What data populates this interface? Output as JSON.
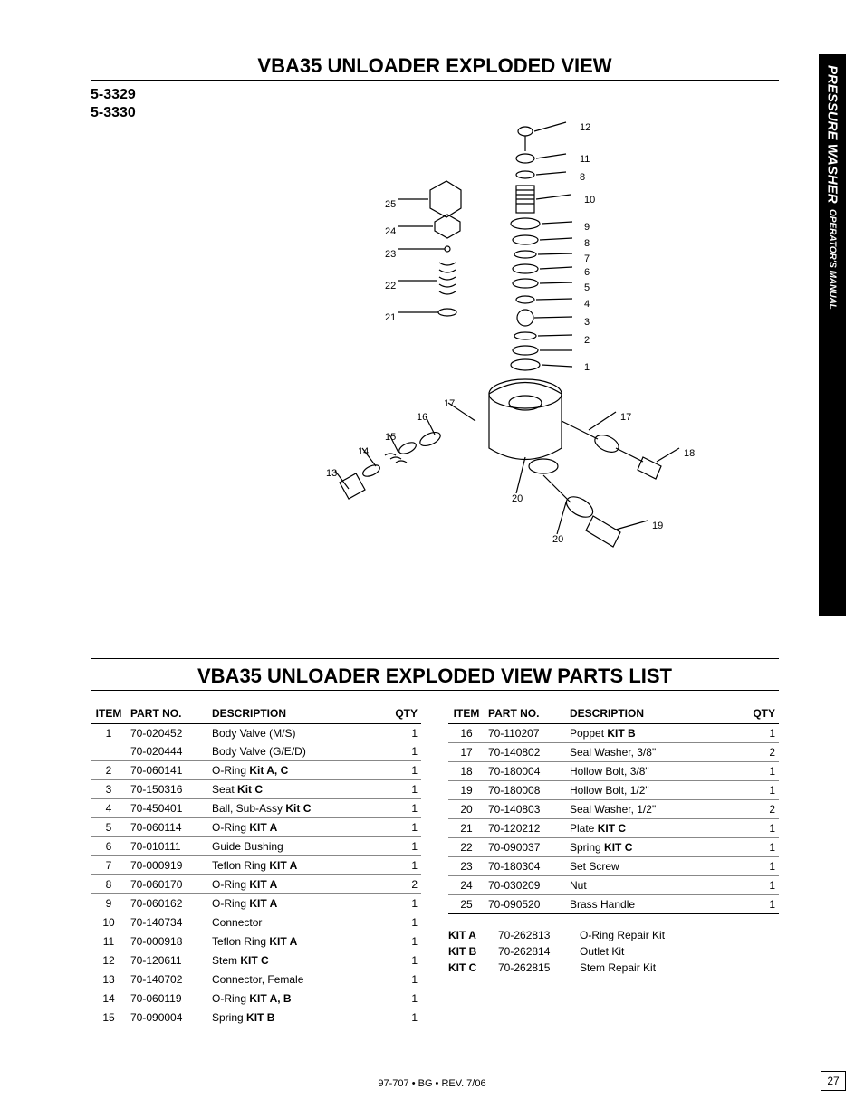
{
  "side_tab": {
    "main": "PRESSURE WASHER",
    "sub": "OPERATOR'S MANUAL"
  },
  "title1": "VBA35 UNLOADER EXPLODED VIEW",
  "title2": "VBA35 UNLOADER EXPLODED VIEW PARTS LIST",
  "models": [
    "5-3329",
    "5-3330"
  ],
  "headers": {
    "item": "ITEM",
    "part": "PART NO.",
    "desc": "DESCRIPTION",
    "qty": "QTY"
  },
  "left_rows": [
    {
      "item": "1",
      "part": "70-020452",
      "desc": "Body Valve (M/S)",
      "qty": "1",
      "nobottom": true
    },
    {
      "item": "",
      "part": "70-020444",
      "desc": "Body Valve (G/E/D)",
      "qty": "1"
    },
    {
      "item": "2",
      "part": "70-060141",
      "desc": "O-Ring <b>Kit A, C</b>",
      "qty": "1"
    },
    {
      "item": "3",
      "part": "70-150316",
      "desc": "Seat <b>Kit C</b>",
      "qty": "1"
    },
    {
      "item": "4",
      "part": "70-450401",
      "desc": "Ball, Sub-Assy <b>Kit C</b>",
      "qty": "1"
    },
    {
      "item": "5",
      "part": "70-060114",
      "desc": "O-Ring <b>KIT A</b>",
      "qty": "1"
    },
    {
      "item": "6",
      "part": "70-010111",
      "desc": "Guide Bushing",
      "qty": "1"
    },
    {
      "item": "7",
      "part": "70-000919",
      "desc": "Teflon Ring <b>KIT A</b>",
      "qty": "1"
    },
    {
      "item": "8",
      "part": "70-060170",
      "desc": "O-Ring <b>KIT A</b>",
      "qty": "2"
    },
    {
      "item": "9",
      "part": "70-060162",
      "desc": "O-Ring <b>KIT A</b>",
      "qty": "1"
    },
    {
      "item": "10",
      "part": "70-140734",
      "desc": "Connector",
      "qty": "1"
    },
    {
      "item": "11",
      "part": "70-000918",
      "desc": "Teflon Ring <b>KIT A</b>",
      "qty": "1"
    },
    {
      "item": "12",
      "part": "70-120611",
      "desc": "Stem <b>KIT C</b>",
      "qty": "1"
    },
    {
      "item": "13",
      "part": "70-140702",
      "desc": "Connector, Female",
      "qty": "1"
    },
    {
      "item": "14",
      "part": "70-060119",
      "desc": "O-Ring <b>KIT A, B</b>",
      "qty": "1"
    },
    {
      "item": "15",
      "part": "70-090004",
      "desc": "Spring <b>KIT B</b>",
      "qty": "1",
      "last": true
    }
  ],
  "right_rows": [
    {
      "item": "16",
      "part": "70-110207",
      "desc": "Poppet <b>KIT B</b>",
      "qty": "1"
    },
    {
      "item": "17",
      "part": "70-140802",
      "desc": "Seal Washer, 3/8\"",
      "qty": "2"
    },
    {
      "item": "18",
      "part": "70-180004",
      "desc": "Hollow Bolt, 3/8\"",
      "qty": "1"
    },
    {
      "item": "19",
      "part": "70-180008",
      "desc": "Hollow Bolt, 1/2\"",
      "qty": "1"
    },
    {
      "item": "20",
      "part": "70-140803",
      "desc": "Seal Washer, 1/2\"",
      "qty": "2"
    },
    {
      "item": "21",
      "part": "70-120212",
      "desc": "Plate <b>KIT C</b>",
      "qty": "1"
    },
    {
      "item": "22",
      "part": "70-090037",
      "desc": "Spring <b>KIT C</b>",
      "qty": "1"
    },
    {
      "item": "23",
      "part": "70-180304",
      "desc": "Set Screw",
      "qty": "1"
    },
    {
      "item": "24",
      "part": "70-030209",
      "desc": "Nut",
      "qty": "1"
    },
    {
      "item": "25",
      "part": "70-090520",
      "desc": "Brass Handle",
      "qty": "1",
      "last": true
    }
  ],
  "kits": [
    {
      "label": "KIT A",
      "part": "70-262813",
      "desc": "O-Ring Repair Kit"
    },
    {
      "label": "KIT B",
      "part": "70-262814",
      "desc": "Outlet Kit"
    },
    {
      "label": "KIT C",
      "part": "70-262815",
      "desc": "Stem Repair Kit"
    }
  ],
  "footer": "97-707 • BG • REV. 7/06",
  "page_no": "27",
  "callouts_right": [
    "12",
    "11",
    "8",
    "10",
    "9",
    "8",
    "7",
    "6",
    "5",
    "4",
    "3",
    "2",
    "1"
  ],
  "callouts_left": [
    "25",
    "24",
    "23",
    "22",
    "21"
  ],
  "callouts_bottom": {
    "17l": "17",
    "16": "16",
    "15": "15",
    "14": "14",
    "13": "13",
    "20l": "20",
    "17r": "17",
    "18": "18",
    "19": "19",
    "20r": "20"
  },
  "colors": {
    "text": "#000000",
    "bg": "#ffffff",
    "rule": "#888888",
    "tab_bg": "#000000",
    "tab_fg": "#ffffff"
  }
}
